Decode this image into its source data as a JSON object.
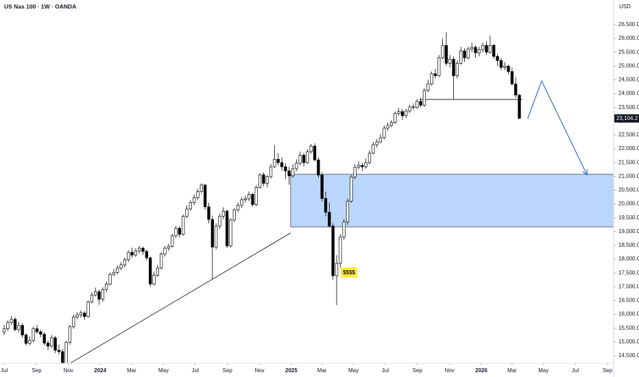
{
  "chart_data": {
    "type": "candlestick",
    "title": "US Nas 100 · 1W · OANDA",
    "y_axis_label": "USD",
    "annotation": "$$$$",
    "last_price": {
      "value": 23104.2,
      "label": "23,104.2"
    },
    "up_color": "#ffffff",
    "down_color": "#000000",
    "outline_color": "#000000",
    "xlim": [
      -1.13,
      166.8
    ],
    "ylim": [
      14227,
      27394
    ],
    "xticks": [
      {
        "value": 0,
        "label": "Jul"
      },
      {
        "value": 8.9,
        "label": "Sep"
      },
      {
        "value": 17.6,
        "label": "Nov"
      },
      {
        "value": 26.3,
        "label": "2024"
      },
      {
        "value": 34.9,
        "label": "Mar"
      },
      {
        "value": 43.6,
        "label": "May"
      },
      {
        "value": 52.3,
        "label": "Jul"
      },
      {
        "value": 61.1,
        "label": "Sep"
      },
      {
        "value": 69.9,
        "label": "Nov"
      },
      {
        "value": 78.6,
        "label": "2025"
      },
      {
        "value": 87.0,
        "label": "Mar"
      },
      {
        "value": 95.6,
        "label": "May"
      },
      {
        "value": 104.3,
        "label": "Jul"
      },
      {
        "value": 113.1,
        "label": "Sep"
      },
      {
        "value": 121.9,
        "label": "Nov"
      },
      {
        "value": 130.6,
        "label": "2026"
      },
      {
        "value": 139.0,
        "label": "Mar"
      },
      {
        "value": 147.6,
        "label": "May"
      },
      {
        "value": 156.3,
        "label": "Jul"
      },
      {
        "value": 165.1,
        "label": "Sep"
      }
    ],
    "yticks": [
      {
        "value": 14500,
        "label": "14,500.0"
      },
      {
        "value": 15000,
        "label": "15,000.0"
      },
      {
        "value": 15500,
        "label": "15,500.0"
      },
      {
        "value": 16000,
        "label": "16,000.0"
      },
      {
        "value": 16500,
        "label": "16,500.0"
      },
      {
        "value": 17000,
        "label": "17,000.0"
      },
      {
        "value": 17500,
        "label": "17,500.0"
      },
      {
        "value": 18000,
        "label": "18,000.0"
      },
      {
        "value": 18500,
        "label": "18,500.0"
      },
      {
        "value": 19000,
        "label": "19,000.0"
      },
      {
        "value": 19500,
        "label": "19,500.0"
      },
      {
        "value": 20000,
        "label": "20,000.0"
      },
      {
        "value": 20500,
        "label": "20,500.0"
      },
      {
        "value": 21000,
        "label": "21,000.0"
      },
      {
        "value": 21500,
        "label": "21,500.0"
      },
      {
        "value": 22000,
        "label": "22,000.0"
      },
      {
        "value": 22500,
        "label": "22,500.0"
      },
      {
        "value": 23000,
        "label": "23,000.0"
      },
      {
        "value": 23500,
        "label": "23,500.0"
      },
      {
        "value": 24000,
        "label": "24,000.0"
      },
      {
        "value": 24500,
        "label": "24,500.0"
      },
      {
        "value": 25000,
        "label": "25,000.0"
      },
      {
        "value": 25500,
        "label": "25,500.0"
      },
      {
        "value": 26000,
        "label": "26,000.0"
      },
      {
        "value": 26500,
        "label": "26,500.0"
      }
    ],
    "x": [
      0,
      1,
      2,
      3,
      4,
      5,
      6,
      7,
      8,
      9,
      10,
      11,
      12,
      13,
      14,
      15,
      16,
      17,
      18,
      19,
      20,
      21,
      22,
      23,
      24,
      25,
      26,
      27,
      28,
      29,
      30,
      31,
      32,
      33,
      34,
      35,
      36,
      37,
      38,
      39,
      40,
      41,
      42,
      43,
      44,
      45,
      46,
      47,
      48,
      49,
      50,
      51,
      52,
      53,
      54,
      55,
      56,
      57,
      58,
      59,
      60,
      61,
      62,
      63,
      64,
      65,
      66,
      67,
      68,
      69,
      70,
      71,
      72,
      73,
      74,
      75,
      76,
      77,
      78,
      79,
      80,
      81,
      82,
      83,
      84,
      85,
      86,
      87,
      88,
      89,
      90,
      91,
      92,
      93,
      94,
      95,
      96,
      97,
      98,
      99,
      100,
      101,
      102,
      103,
      104,
      105,
      106,
      107,
      108,
      109,
      110,
      111,
      112,
      113,
      114,
      115,
      116,
      117,
      118,
      119,
      120,
      121,
      122,
      123,
      124,
      125,
      126,
      127,
      128,
      129,
      130,
      131,
      132,
      133,
      134,
      135,
      136,
      137,
      138,
      139,
      140,
      141
    ],
    "open": [
      15350,
      15480,
      15700,
      15820,
      15450,
      15600,
      15250,
      14950,
      15050,
      15480,
      15370,
      15280,
      14960,
      14850,
      15150,
      14700,
      14650,
      14200,
      14980,
      15550,
      15900,
      15980,
      16050,
      15920,
      16450,
      16700,
      16820,
      16550,
      16900,
      17100,
      17450,
      17520,
      17680,
      17790,
      17980,
      18250,
      18150,
      18300,
      18400,
      18280,
      18050,
      17100,
      17420,
      17680,
      18190,
      18400,
      18470,
      18850,
      19120,
      18900,
      19550,
      19820,
      20050,
      20230,
      20450,
      20690,
      19900,
      19440,
      18440,
      19200,
      19560,
      19740,
      18480,
      19420,
      19790,
      19960,
      20150,
      20190,
      20350,
      19980,
      20600,
      21060,
      20750,
      20990,
      21350,
      21620,
      21500,
      21350,
      21200,
      21020,
      21280,
      21480,
      21770,
      21500,
      21900,
      22100,
      21600,
      21050,
      20200,
      19700,
      19200,
      17400,
      17850,
      18800,
      19350,
      20100,
      20980,
      21330,
      21400,
      21350,
      21500,
      21850,
      22150,
      22250,
      22400,
      22750,
      22850,
      22960,
      23280,
      23350,
      23200,
      23370,
      23520,
      23500,
      23720,
      23580,
      24120,
      24350,
      24720,
      24650,
      25300,
      25750,
      25100,
      25250,
      24650,
      25100,
      25550,
      25300,
      25620,
      25680,
      25480,
      25600,
      25750,
      25500,
      25750,
      25350,
      25200,
      24950,
      25000,
      24800,
      24350,
      23950
    ],
    "high": [
      15620,
      15780,
      15950,
      15900,
      15720,
      15680,
      15320,
      15200,
      15560,
      15620,
      15450,
      15350,
      15050,
      15250,
      15220,
      14900,
      14750,
      15050,
      15620,
      16000,
      16080,
      16150,
      16120,
      16500,
      16800,
      16970,
      16900,
      16980,
      17200,
      17520,
      17650,
      17780,
      17900,
      18050,
      18320,
      18420,
      18400,
      18480,
      18460,
      18350,
      18100,
      17550,
      17800,
      18250,
      18480,
      18560,
      18920,
      19200,
      19200,
      19620,
      19950,
      20150,
      20350,
      20550,
      20750,
      20720,
      20050,
      19580,
      19300,
      19650,
      19880,
      19800,
      19480,
      19850,
      20050,
      20250,
      20300,
      20450,
      20400,
      20680,
      21120,
      21150,
      21050,
      21450,
      22130,
      21850,
      21700,
      21480,
      21350,
      21450,
      21620,
      21900,
      21850,
      21980,
      22180,
      22200,
      21700,
      21150,
      20450,
      20050,
      19300,
      18150,
      18900,
      19450,
      20200,
      21050,
      21450,
      21550,
      21500,
      21650,
      21950,
      22250,
      22350,
      22550,
      22850,
      22950,
      23050,
      23350,
      23480,
      23450,
      23450,
      23600,
      23650,
      23800,
      23850,
      24200,
      24500,
      24800,
      24900,
      25400,
      26000,
      26230,
      25400,
      25350,
      25200,
      25700,
      25650,
      25700,
      25850,
      25750,
      25700,
      25850,
      25900,
      26100,
      25800,
      25450,
      25300,
      25150,
      25050,
      24950,
      24600,
      23980
    ],
    "low": [
      15250,
      15400,
      15620,
      15380,
      15350,
      15150,
      14850,
      14880,
      14980,
      15300,
      15180,
      14880,
      14700,
      14780,
      14600,
      14550,
      14050,
      14150,
      14900,
      15480,
      15820,
      15880,
      15800,
      15880,
      16400,
      16650,
      16350,
      16450,
      16800,
      17050,
      17380,
      17450,
      17600,
      17700,
      17900,
      18050,
      18080,
      18200,
      18150,
      17950,
      17000,
      17050,
      17350,
      17620,
      18100,
      18300,
      18420,
      18780,
      18780,
      18850,
      19480,
      19750,
      19950,
      20150,
      20380,
      19800,
      19300,
      17280,
      18350,
      19100,
      19450,
      18400,
      18420,
      19350,
      19700,
      19850,
      20050,
      20100,
      19900,
      19920,
      20550,
      20650,
      20600,
      20920,
      21300,
      21400,
      21200,
      20900,
      20700,
      20950,
      21200,
      21400,
      21350,
      21450,
      21820,
      21550,
      20950,
      20100,
      19550,
      19150,
      17250,
      16340,
      17700,
      18700,
      19250,
      20050,
      20900,
      21250,
      21200,
      21280,
      21450,
      21800,
      22050,
      22200,
      22350,
      22650,
      22780,
      22900,
      23200,
      23050,
      23120,
      23300,
      23400,
      23450,
      23500,
      23520,
      24050,
      24300,
      24550,
      24600,
      25250,
      25000,
      24950,
      23800,
      24550,
      25050,
      25150,
      25250,
      25500,
      25300,
      25350,
      25500,
      25400,
      25450,
      25250,
      25000,
      24850,
      24850,
      24700,
      24300,
      23850,
      23080
    ],
    "close": [
      15480,
      15700,
      15820,
      15450,
      15600,
      15250,
      14950,
      15050,
      15480,
      15370,
      15280,
      14960,
      14850,
      15150,
      14700,
      14650,
      14200,
      14980,
      15550,
      15900,
      15980,
      16050,
      15920,
      16450,
      16700,
      16820,
      16550,
      16900,
      17100,
      17450,
      17520,
      17680,
      17790,
      17980,
      18250,
      18150,
      18300,
      18400,
      18280,
      18050,
      17100,
      17420,
      17680,
      18190,
      18400,
      18470,
      18850,
      19120,
      18900,
      19550,
      19820,
      20050,
      20230,
      20450,
      20690,
      19900,
      19440,
      18440,
      19200,
      19560,
      19740,
      18480,
      19420,
      19790,
      19960,
      20150,
      20190,
      20350,
      19980,
      20600,
      21060,
      20750,
      20990,
      21350,
      21620,
      21500,
      21350,
      21200,
      21020,
      21280,
      21480,
      21770,
      21500,
      21900,
      22100,
      21600,
      21050,
      20200,
      19700,
      19200,
      17400,
      17850,
      18800,
      19350,
      20100,
      20980,
      21330,
      21400,
      21350,
      21500,
      21850,
      22150,
      22250,
      22400,
      22750,
      22850,
      22960,
      23280,
      23350,
      23200,
      23370,
      23520,
      23500,
      23720,
      23580,
      24120,
      24350,
      24720,
      24650,
      25300,
      25750,
      25100,
      25250,
      24650,
      25100,
      25550,
      25300,
      25620,
      25680,
      25480,
      25600,
      25750,
      25500,
      25750,
      25350,
      25200,
      24950,
      25000,
      24800,
      24350,
      23950,
      23104.2
    ],
    "zone": {
      "x_start": 78.4,
      "top": 21080,
      "bottom": 19170,
      "color": "#bbd6fb"
    },
    "level": {
      "x": [
        113.7,
        141.8
      ],
      "y": 23790
    },
    "trendline": {
      "x": [
        15.8,
        78.4
      ],
      "y": [
        14050,
        18950
      ]
    },
    "projection": {
      "x": [
        143.3,
        147.1,
        159.5
      ],
      "y": [
        23100,
        24460,
        21060
      ],
      "color": "#2f6fd0"
    }
  }
}
